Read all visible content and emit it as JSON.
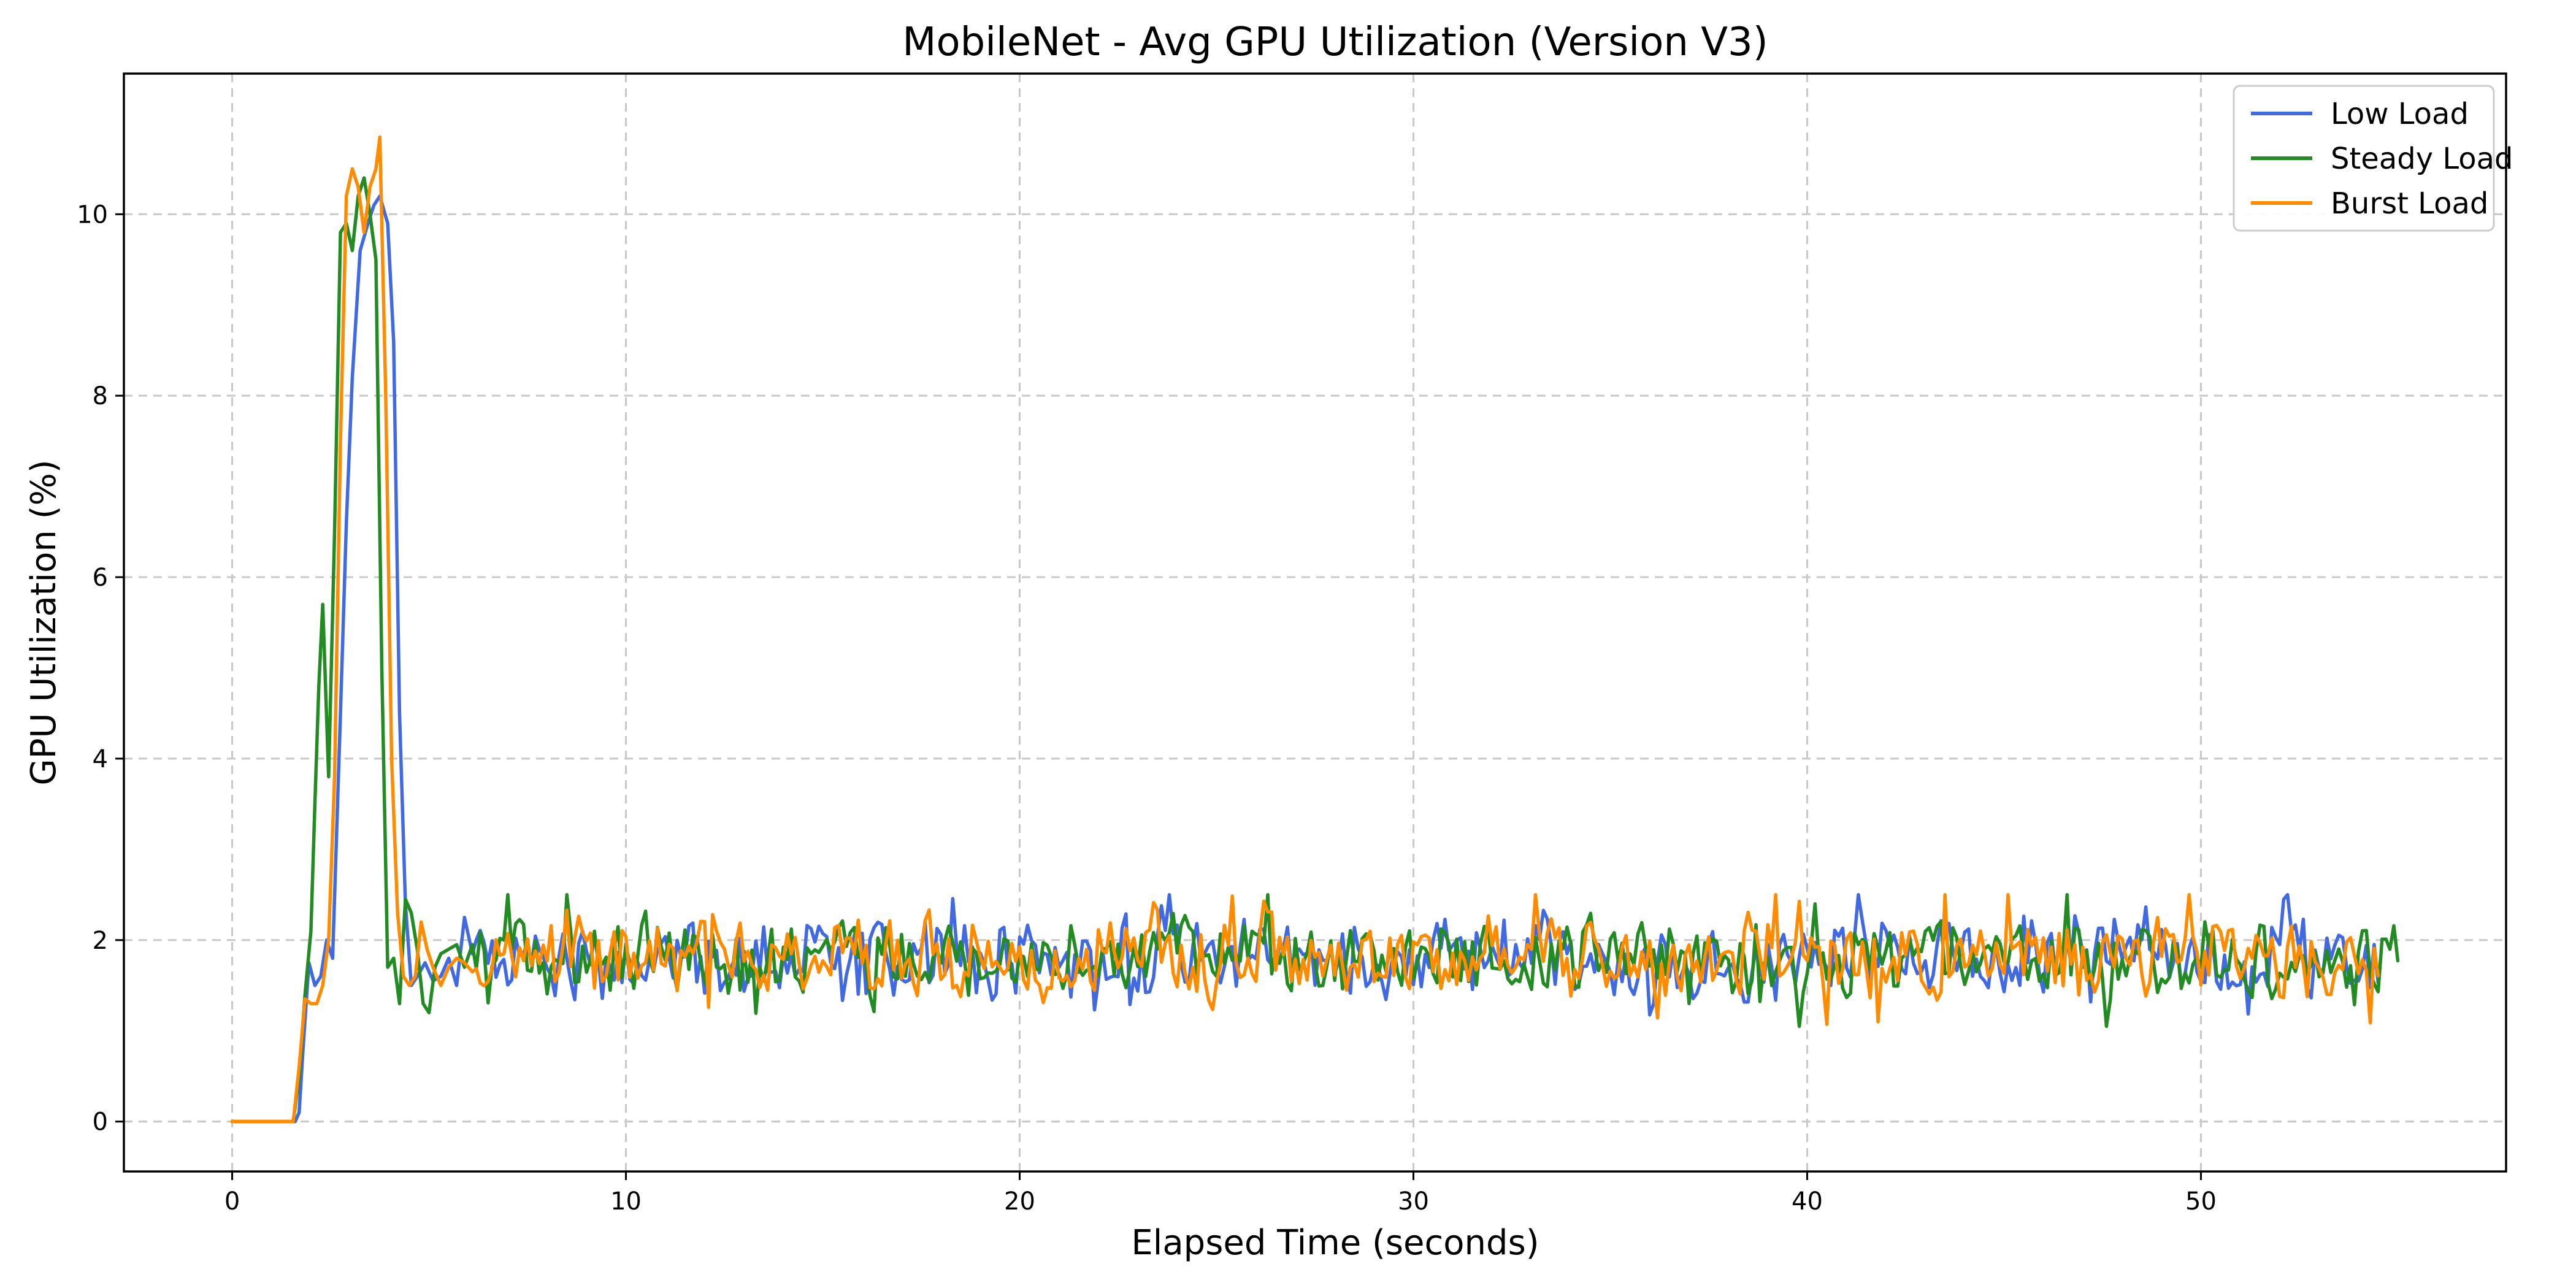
{
  "chart_data": {
    "type": "line",
    "title": "MobileNet - Avg GPU Utilization (Version V3)",
    "xlabel": "Elapsed Time (seconds)",
    "ylabel": "GPU Utilization (%)",
    "xlim": [
      -2.75,
      57.75
    ],
    "ylim": [
      -0.55,
      11.55
    ],
    "xticks": [
      0,
      10,
      20,
      30,
      40,
      50
    ],
    "yticks": [
      0,
      2,
      4,
      6,
      8,
      10
    ],
    "grid": true,
    "legend_position": "top-right",
    "series": [
      {
        "name": "Low Load",
        "color": "#4169e1",
        "x_end": 54.5,
        "points": [
          [
            0,
            0
          ],
          [
            1.6,
            0
          ],
          [
            1.7,
            0.1
          ],
          [
            1.8,
            0.8
          ],
          [
            1.95,
            1.75
          ],
          [
            2.1,
            1.5
          ],
          [
            2.25,
            1.6
          ],
          [
            2.4,
            2.0
          ],
          [
            2.55,
            1.8
          ],
          [
            2.75,
            4.5
          ],
          [
            2.9,
            6.6
          ],
          [
            3.05,
            8.2
          ],
          [
            3.25,
            9.6
          ],
          [
            3.45,
            9.9
          ],
          [
            3.6,
            10.1
          ],
          [
            3.75,
            10.2
          ],
          [
            3.95,
            9.9
          ],
          [
            4.1,
            8.6
          ],
          [
            4.25,
            4.5
          ],
          [
            4.4,
            2.4
          ],
          [
            4.55,
            1.5
          ],
          [
            4.7,
            1.6
          ],
          [
            4.9,
            1.75
          ],
          [
            5.1,
            1.55
          ],
          [
            5.3,
            1.6
          ],
          [
            5.5,
            1.8
          ],
          [
            5.7,
            1.5
          ],
          [
            5.9,
            2.25
          ],
          [
            6.1,
            1.85
          ]
        ]
      },
      {
        "name": "Steady Load",
        "color": "#228b22",
        "x_end": 55.0,
        "points": [
          [
            0,
            0
          ],
          [
            1.55,
            0
          ],
          [
            1.7,
            0.5
          ],
          [
            1.85,
            1.4
          ],
          [
            2.0,
            2.1
          ],
          [
            2.1,
            3.5
          ],
          [
            2.2,
            4.8
          ],
          [
            2.3,
            5.7
          ],
          [
            2.45,
            3.8
          ],
          [
            2.6,
            6.5
          ],
          [
            2.75,
            9.8
          ],
          [
            2.9,
            9.9
          ],
          [
            3.05,
            9.6
          ],
          [
            3.2,
            10.2
          ],
          [
            3.35,
            10.4
          ],
          [
            3.5,
            10.0
          ],
          [
            3.65,
            9.5
          ],
          [
            3.8,
            5.0
          ],
          [
            3.95,
            1.7
          ],
          [
            4.1,
            1.8
          ],
          [
            4.25,
            1.3
          ],
          [
            4.4,
            2.45
          ],
          [
            4.55,
            2.3
          ],
          [
            4.7,
            1.9
          ],
          [
            4.85,
            1.3
          ],
          [
            5.0,
            1.2
          ],
          [
            5.15,
            1.7
          ],
          [
            5.3,
            1.85
          ],
          [
            5.5,
            1.9
          ],
          [
            5.7,
            1.95
          ],
          [
            5.9,
            1.7
          ],
          [
            6.1,
            1.95
          ]
        ]
      },
      {
        "name": "Burst Load",
        "color": "#ff8c00",
        "x_end": 54.5,
        "points": [
          [
            0,
            0
          ],
          [
            1.55,
            0
          ],
          [
            1.7,
            0.6
          ],
          [
            1.85,
            1.35
          ],
          [
            2.0,
            1.3
          ],
          [
            2.15,
            1.3
          ],
          [
            2.3,
            1.5
          ],
          [
            2.45,
            2.0
          ],
          [
            2.6,
            3.8
          ],
          [
            2.75,
            7.5
          ],
          [
            2.9,
            10.2
          ],
          [
            3.05,
            10.5
          ],
          [
            3.2,
            10.3
          ],
          [
            3.35,
            9.8
          ],
          [
            3.5,
            10.3
          ],
          [
            3.65,
            10.5
          ],
          [
            3.75,
            10.85
          ],
          [
            3.9,
            8.0
          ],
          [
            4.05,
            4.0
          ],
          [
            4.2,
            2.3
          ],
          [
            4.35,
            1.6
          ],
          [
            4.5,
            1.5
          ],
          [
            4.65,
            1.6
          ],
          [
            4.8,
            2.2
          ],
          [
            4.95,
            1.9
          ],
          [
            5.1,
            1.7
          ],
          [
            5.3,
            1.5
          ],
          [
            5.5,
            1.7
          ],
          [
            5.7,
            1.8
          ],
          [
            5.9,
            1.75
          ],
          [
            6.1,
            1.65
          ]
        ]
      }
    ]
  }
}
